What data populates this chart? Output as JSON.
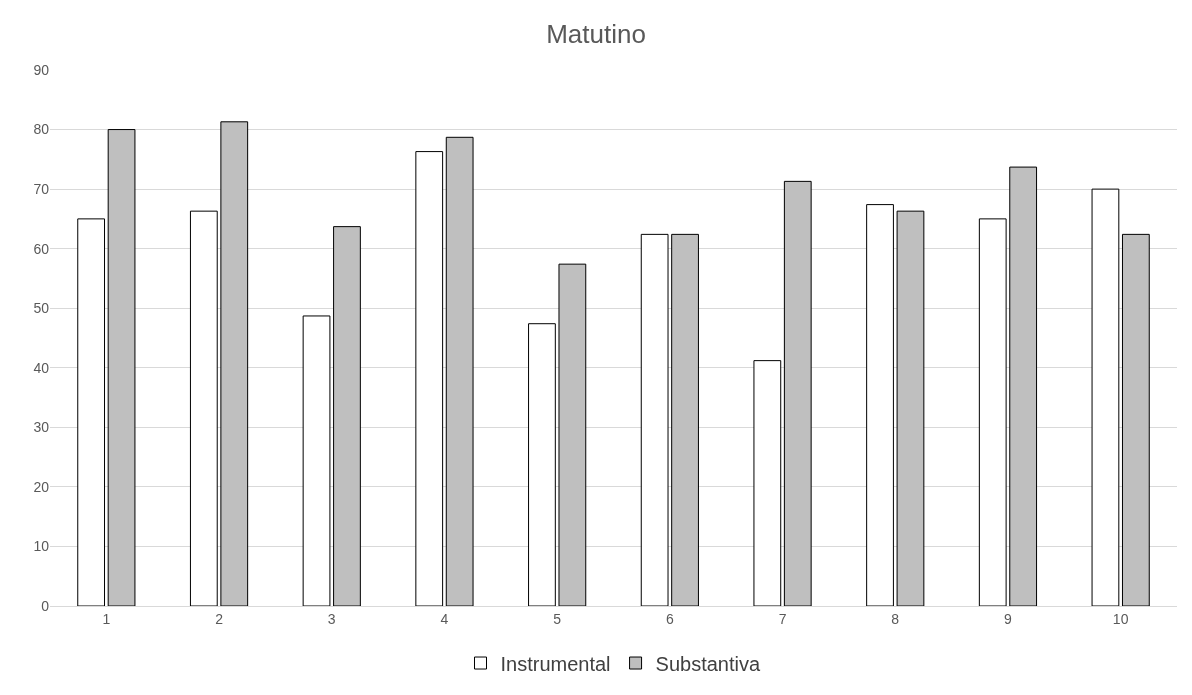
{
  "chart_data": {
    "type": "bar",
    "title": "Matutino",
    "categories": [
      "1",
      "2",
      "3",
      "4",
      "5",
      "6",
      "7",
      "8",
      "9",
      "10"
    ],
    "series": [
      {
        "name": "Instrumental",
        "color": "#ffffff",
        "values": [
          65.0,
          66.3,
          48.7,
          76.3,
          47.4,
          62.4,
          41.2,
          67.4,
          65.0,
          70.0
        ]
      },
      {
        "name": "Substantiva",
        "color": "#bfbfbf",
        "values": [
          80.0,
          81.3,
          63.7,
          78.7,
          57.4,
          62.4,
          71.3,
          66.3,
          73.7,
          62.4
        ]
      }
    ],
    "ylim": [
      0,
      90
    ],
    "yticks": [
      0,
      10,
      20,
      30,
      40,
      50,
      60,
      70,
      80,
      90
    ],
    "grid": "y",
    "legend": "bottom"
  }
}
